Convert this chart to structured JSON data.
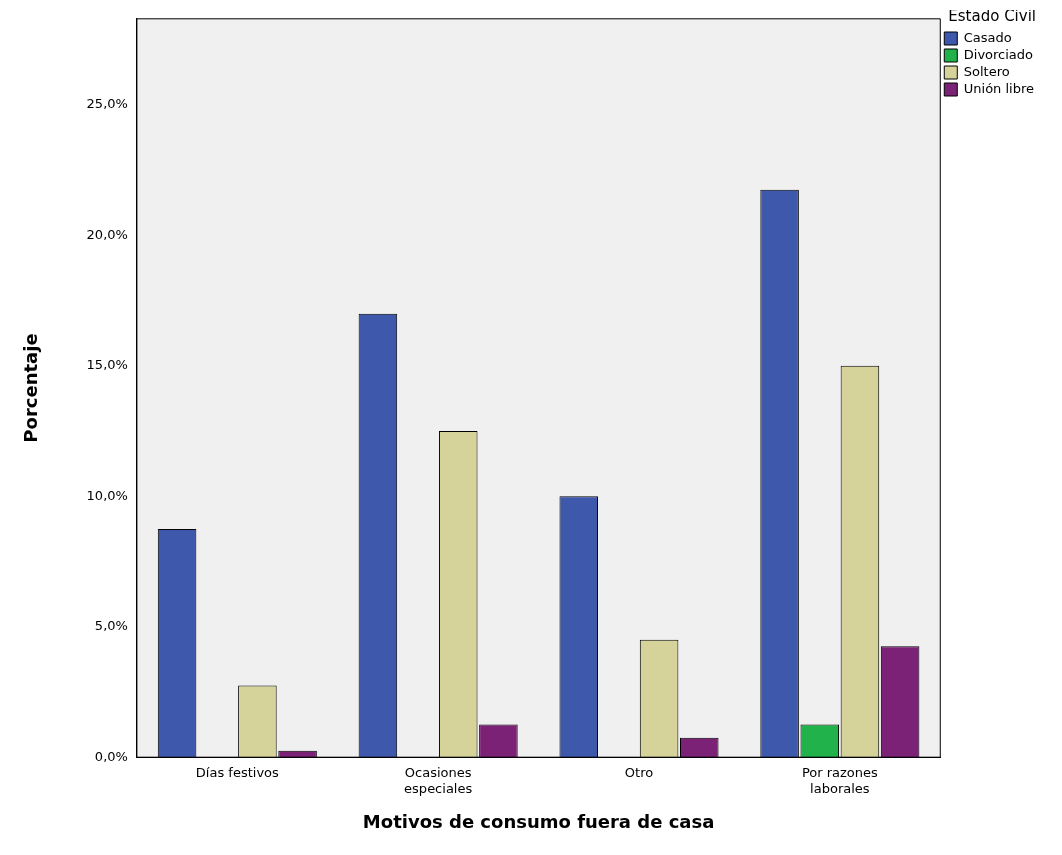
{
  "chart_data": {
    "type": "bar",
    "xlabel": "Motivos de consumo fuera de casa",
    "ylabel": "Porcentaje",
    "legend_title": "Estado Civil",
    "categories": [
      "Días festivos",
      "Ocasiones especiales",
      "Otro",
      "Por razones laborales"
    ],
    "series": [
      {
        "name": "Casado",
        "color": "#3e58ac",
        "values": [
          8.75,
          17.0,
          10.0,
          21.75
        ]
      },
      {
        "name": "Divorciado",
        "color": "#21b24b",
        "values": [
          0,
          0,
          0,
          1.25
        ]
      },
      {
        "name": "Soltero",
        "color": "#d6d39a",
        "values": [
          2.75,
          12.5,
          4.5,
          15.0
        ]
      },
      {
        "name": "Unión libre",
        "color": "#7b2277",
        "values": [
          0.25,
          1.25,
          0.75,
          4.25
        ]
      }
    ],
    "ylim": [
      0,
      28.3
    ],
    "yticks": [
      {
        "value": 0,
        "label": "0,0%"
      },
      {
        "value": 5,
        "label": "5,0%"
      },
      {
        "value": 10,
        "label": "10,0%"
      },
      {
        "value": 15,
        "label": "15,0%"
      },
      {
        "value": 20,
        "label": "20,0%"
      },
      {
        "value": 25,
        "label": "25,0%"
      }
    ],
    "grid": false,
    "legend": "top right"
  }
}
